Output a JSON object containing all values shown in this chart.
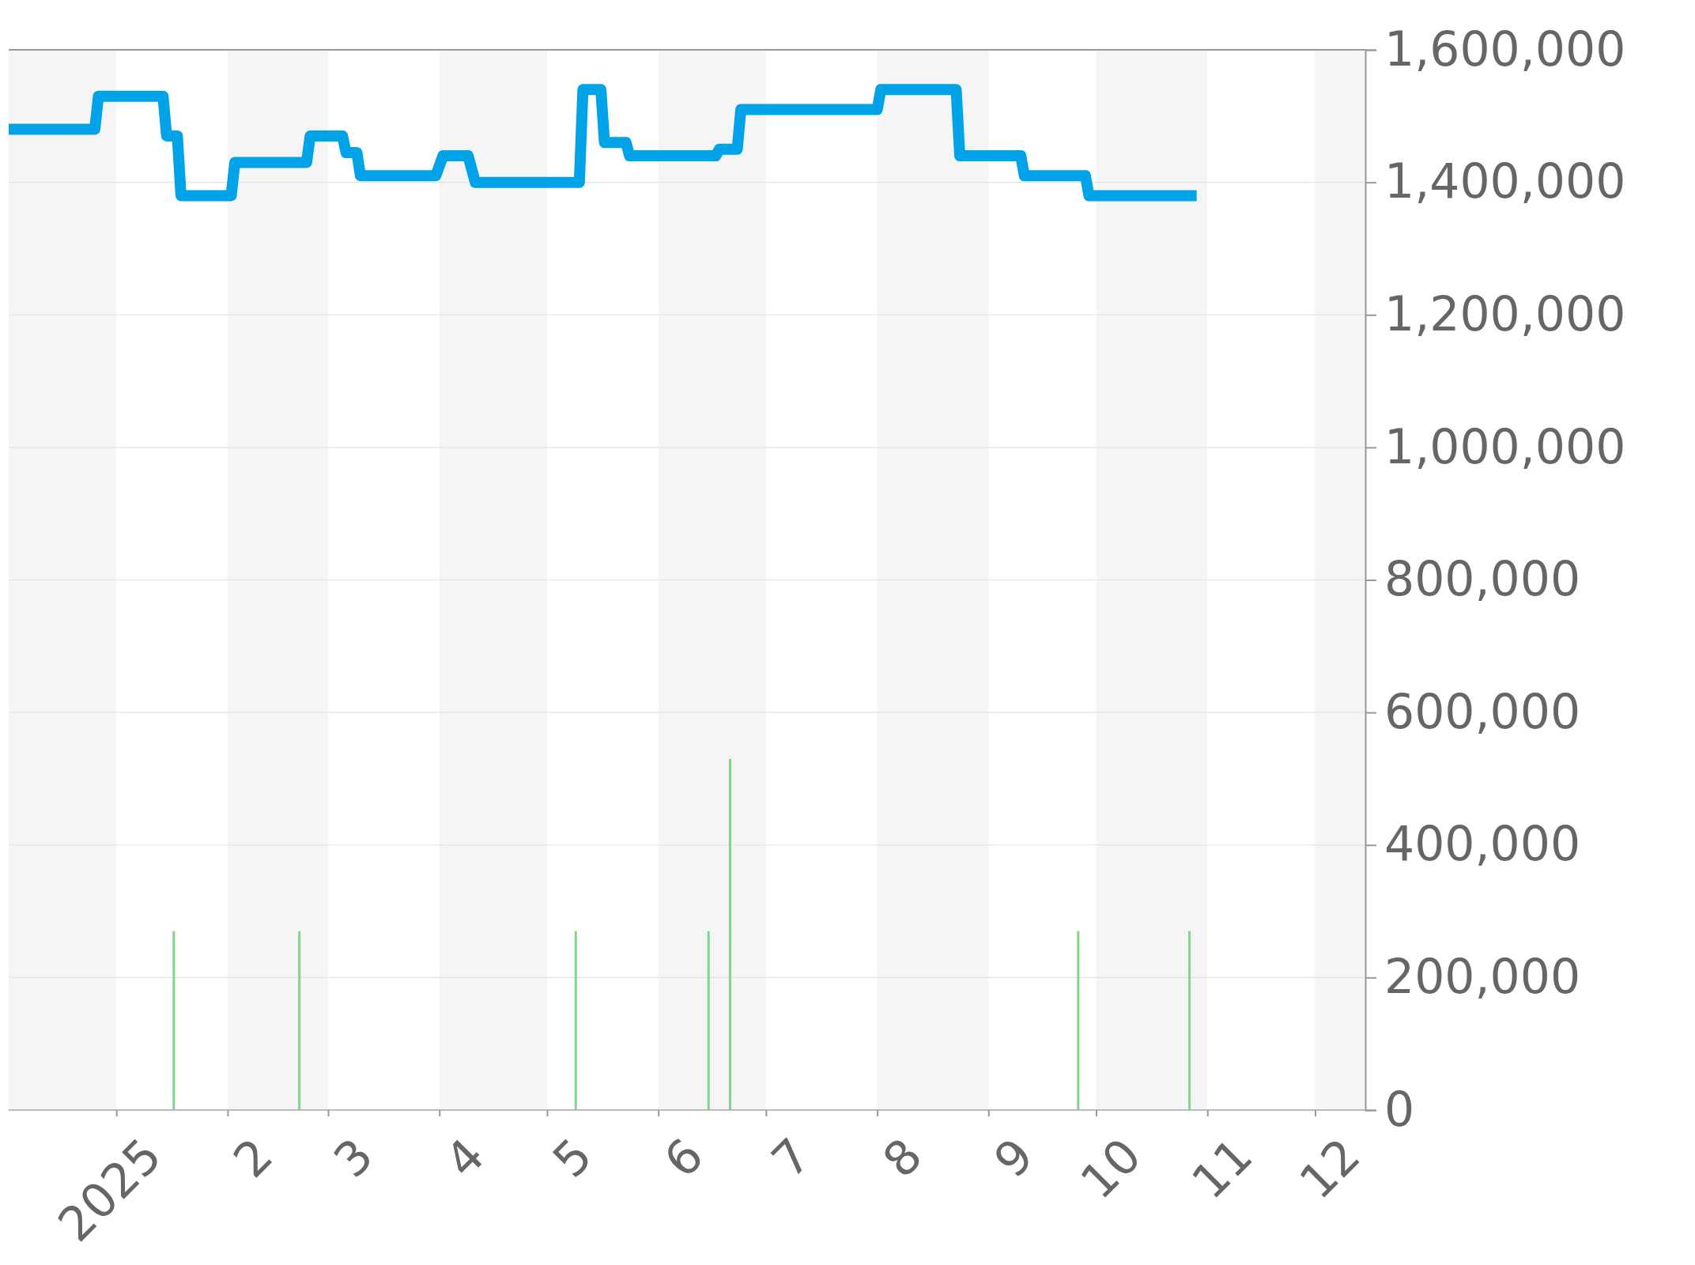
{
  "chart_data": {
    "type": "line",
    "xlim": [
      "2024-12-02",
      "2025-12-15"
    ],
    "xticks": [
      {
        "value": "2025-01-01",
        "label": "2025"
      },
      {
        "value": "2025-02-01",
        "label": "2"
      },
      {
        "value": "2025-03-01",
        "label": "3"
      },
      {
        "value": "2025-04-01",
        "label": "4"
      },
      {
        "value": "2025-05-01",
        "label": "5"
      },
      {
        "value": "2025-06-01",
        "label": "6"
      },
      {
        "value": "2025-07-01",
        "label": "7"
      },
      {
        "value": "2025-08-01",
        "label": "8"
      },
      {
        "value": "2025-09-01",
        "label": "9"
      },
      {
        "value": "2025-10-01",
        "label": "10"
      },
      {
        "value": "2025-11-01",
        "label": "11"
      },
      {
        "value": "2025-12-01",
        "label": "12"
      }
    ],
    "ylim": [
      0,
      1600000
    ],
    "yticks": [
      {
        "value": 0,
        "label": "0"
      },
      {
        "value": 200000,
        "label": "200,000"
      },
      {
        "value": 400000,
        "label": "400,000"
      },
      {
        "value": 600000,
        "label": "600,000"
      },
      {
        "value": 800000,
        "label": "800,000"
      },
      {
        "value": 1000000,
        "label": "1,000,000"
      },
      {
        "value": 1200000,
        "label": "1,200,000"
      },
      {
        "value": 1400000,
        "label": "1,400,000"
      },
      {
        "value": 1600000,
        "label": "1,600,000"
      }
    ],
    "grid": "y",
    "bands": [
      {
        "axis": "x",
        "from": "2024-12-02",
        "to": "2025-01-01",
        "color": "#f5f5f5"
      },
      {
        "axis": "x",
        "from": "2025-02-01",
        "to": "2025-03-01",
        "color": "#f5f5f5"
      },
      {
        "axis": "x",
        "from": "2025-04-01",
        "to": "2025-05-01",
        "color": "#f5f5f5"
      },
      {
        "axis": "x",
        "from": "2025-06-01",
        "to": "2025-07-01",
        "color": "#f5f5f5"
      },
      {
        "axis": "x",
        "from": "2025-08-01",
        "to": "2025-09-01",
        "color": "#f5f5f5"
      },
      {
        "axis": "x",
        "from": "2025-10-01",
        "to": "2025-11-01",
        "color": "#f5f5f5"
      },
      {
        "axis": "x",
        "from": "2025-12-01",
        "to": "2025-12-15",
        "color": "#f5f5f5"
      }
    ],
    "series": [
      {
        "type": "bar",
        "color": "#7fd68f",
        "x": [
          "2025-01-17",
          "2025-02-21",
          "2025-05-09",
          "2025-06-15",
          "2025-06-21",
          "2025-09-26",
          "2025-10-27"
        ],
        "values": [
          270000,
          270000,
          270000,
          270000,
          530000,
          270000,
          270000
        ]
      },
      {
        "color": "#00a2e8",
        "x": [
          "2024-12-02",
          "2024-12-26",
          "2024-12-27",
          "2025-01-14",
          "2025-01-15",
          "2025-01-18",
          "2025-01-19",
          "2025-02-02",
          "2025-02-03",
          "2025-02-23",
          "2025-02-24",
          "2025-03-05",
          "2025-03-06",
          "2025-03-09",
          "2025-03-10",
          "2025-03-31",
          "2025-04-02",
          "2025-04-09",
          "2025-04-11",
          "2025-05-10",
          "2025-05-11",
          "2025-05-16",
          "2025-05-17",
          "2025-05-23",
          "2025-05-24",
          "2025-06-17",
          "2025-06-18",
          "2025-06-23",
          "2025-06-24",
          "2025-08-01",
          "2025-08-02",
          "2025-08-23",
          "2025-08-24",
          "2025-09-10",
          "2025-09-11",
          "2025-09-28",
          "2025-09-29",
          "2025-10-29"
        ],
        "values": [
          1480000,
          1480000,
          1530000,
          1530000,
          1470000,
          1470000,
          1380000,
          1380000,
          1430000,
          1430000,
          1470000,
          1470000,
          1445000,
          1445000,
          1410000,
          1410000,
          1440000,
          1440000,
          1400000,
          1400000,
          1540000,
          1540000,
          1460000,
          1460000,
          1440000,
          1440000,
          1450000,
          1450000,
          1510000,
          1510000,
          1540000,
          1540000,
          1440000,
          1440000,
          1410000,
          1410000,
          1380000,
          1380000
        ]
      }
    ]
  }
}
